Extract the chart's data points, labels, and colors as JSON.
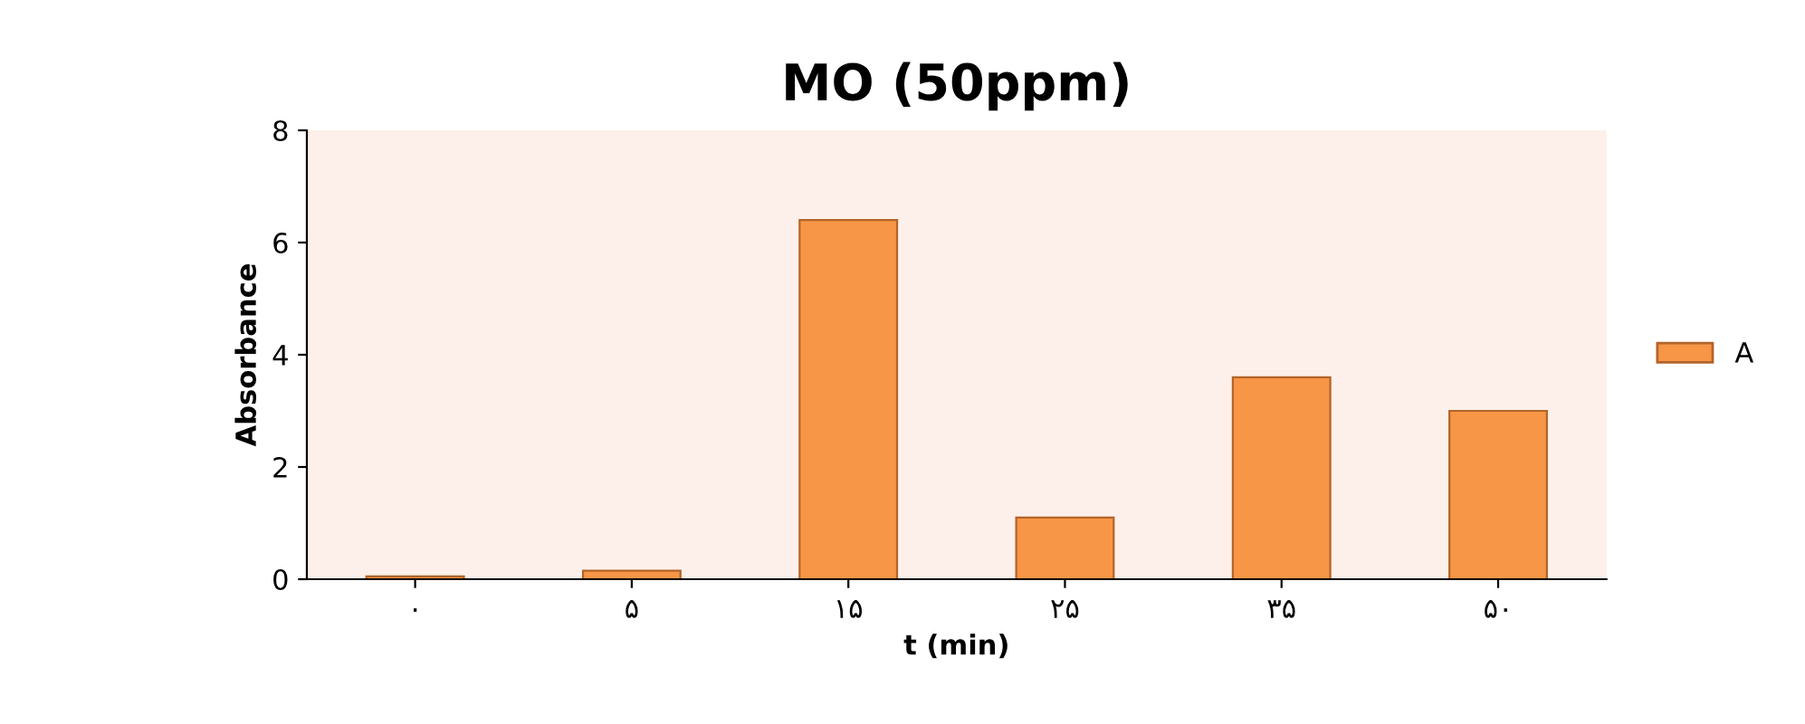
{
  "chart_data": {
    "type": "bar",
    "title": "MO (50ppm)",
    "xlabel": "t (min)",
    "ylabel": "Absorbance",
    "categories": [
      "۰",
      "۵",
      "۱۵",
      "۲۵",
      "۳۵",
      "۵۰"
    ],
    "series": [
      {
        "name": "A",
        "color": "#f79646",
        "values": [
          0.05,
          0.15,
          6.4,
          1.1,
          3.6,
          3.0
        ]
      }
    ],
    "ylim": [
      0,
      8
    ],
    "yticks": [
      0,
      2,
      4,
      6,
      8
    ],
    "grid": false,
    "legend": "right"
  }
}
